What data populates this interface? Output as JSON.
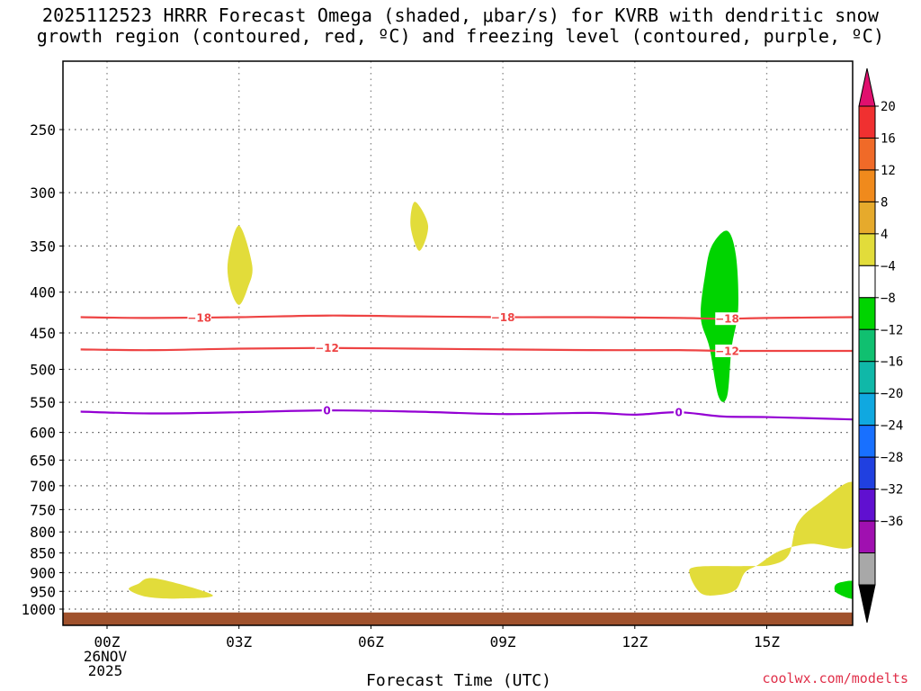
{
  "title": {
    "line1": "2025112523 HRRR Forecast Omega (shaded, μbar/s) for KVRB with dendritic snow",
    "line2": "growth region (contoured, red, ºC) and freezing level (contoured, purple, ºC)"
  },
  "credit": "coolwx.com/modelts",
  "chart_data": {
    "type": "contour",
    "xlabel": "Forecast Time (UTC)",
    "x_ticks": [
      {
        "hour": 0,
        "label": "00Z",
        "sub1": "26NOV",
        "sub2": "2025"
      },
      {
        "hour": 3,
        "label": "03Z"
      },
      {
        "hour": 6,
        "label": "06Z"
      },
      {
        "hour": 9,
        "label": "09Z"
      },
      {
        "hour": 12,
        "label": "12Z"
      },
      {
        "hour": 15,
        "label": "15Z"
      }
    ],
    "xlim": [
      -0.6,
      17
    ],
    "ylim_hpa": [
      195,
      1030
    ],
    "y_ticks": [
      250,
      300,
      350,
      400,
      450,
      500,
      550,
      600,
      650,
      700,
      750,
      800,
      850,
      900,
      950,
      1000
    ],
    "y_tick_labels": [
      "250",
      "300",
      "350",
      "400",
      "450",
      "500",
      "550",
      "600",
      "650",
      "700",
      "750",
      "800",
      "850",
      "900",
      "950",
      "1000"
    ],
    "surface_hpa": 1015,
    "surface_color": "#a0522d",
    "contours": [
      {
        "value": -18,
        "color": "#ee4444",
        "labels": [
          "-18",
          "-18",
          "-18"
        ],
        "label_hours": [
          2.1,
          9.0,
          14.1
        ],
        "points": [
          [
            -0.6,
            430
          ],
          [
            1,
            431
          ],
          [
            3,
            430
          ],
          [
            5,
            428
          ],
          [
            7,
            429
          ],
          [
            9,
            430
          ],
          [
            11,
            430
          ],
          [
            13,
            431
          ],
          [
            14,
            432
          ],
          [
            15,
            431
          ],
          [
            17,
            430
          ]
        ]
      },
      {
        "value": -12,
        "color": "#ee4444",
        "labels": [
          "-12",
          "-12"
        ],
        "label_hours": [
          5.0,
          14.1
        ],
        "points": [
          [
            -0.6,
            472
          ],
          [
            1,
            473
          ],
          [
            3,
            471
          ],
          [
            5,
            470
          ],
          [
            7,
            471
          ],
          [
            9,
            472
          ],
          [
            11,
            473
          ],
          [
            13,
            473
          ],
          [
            14,
            474
          ],
          [
            15,
            474
          ],
          [
            17,
            474
          ]
        ]
      },
      {
        "value": 0,
        "color": "#9400d3",
        "labels": [
          "0",
          "0"
        ],
        "label_hours": [
          5.0,
          13.0
        ],
        "points": [
          [
            -0.6,
            565
          ],
          [
            1,
            568
          ],
          [
            3,
            566
          ],
          [
            5,
            563
          ],
          [
            7,
            565
          ],
          [
            9,
            569
          ],
          [
            11,
            567
          ],
          [
            12,
            570
          ],
          [
            13,
            566
          ],
          [
            14,
            573
          ],
          [
            15,
            574
          ],
          [
            17,
            578
          ]
        ]
      }
    ],
    "shaded_regions": [
      {
        "color": "#e2dc3a",
        "range": "4 to 8",
        "points": [
          [
            3.0,
            330
          ],
          [
            3.3,
            370
          ],
          [
            3.2,
            395
          ],
          [
            3.0,
            415
          ],
          [
            2.8,
            395
          ],
          [
            2.75,
            365
          ]
        ]
      },
      {
        "color": "#e2dc3a",
        "range": "4 to 8",
        "points": [
          [
            7.0,
            308
          ],
          [
            7.3,
            330
          ],
          [
            7.1,
            355
          ],
          [
            6.9,
            330
          ]
        ]
      },
      {
        "color": "#e2dc3a",
        "range": "4 to 8",
        "points": [
          [
            0.5,
            945
          ],
          [
            0.7,
            930
          ],
          [
            1.1,
            915
          ],
          [
            2.4,
            960
          ],
          [
            1.6,
            970
          ],
          [
            0.9,
            965
          ]
        ]
      },
      {
        "color": "#e2dc3a",
        "range": "4 to 8",
        "points": [
          [
            13.25,
            905
          ],
          [
            13.4,
            885
          ],
          [
            14.5,
            883
          ],
          [
            15.1,
            880
          ],
          [
            15.5,
            855
          ],
          [
            15.7,
            780
          ],
          [
            16.2,
            735
          ],
          [
            17.0,
            695
          ],
          [
            17.0,
            830
          ],
          [
            16.0,
            828
          ],
          [
            15.3,
            845
          ],
          [
            14.8,
            880
          ],
          [
            14.5,
            900
          ],
          [
            14.3,
            945
          ],
          [
            13.9,
            960
          ],
          [
            13.5,
            955
          ]
        ]
      },
      {
        "color": "#00d400",
        "range": "-4 to -8",
        "points": [
          [
            14.1,
            335
          ],
          [
            14.3,
            360
          ],
          [
            14.35,
            420
          ],
          [
            14.2,
            470
          ],
          [
            14.1,
            540
          ],
          [
            13.9,
            540
          ],
          [
            13.7,
            470
          ],
          [
            13.5,
            430
          ],
          [
            13.6,
            380
          ],
          [
            13.75,
            350
          ]
        ]
      },
      {
        "color": "#00d400",
        "range": "-4 to -8",
        "points": [
          [
            17.0,
            925
          ],
          [
            17.0,
            970
          ],
          [
            16.6,
            955
          ],
          [
            16.55,
            935
          ],
          [
            16.7,
            925
          ]
        ]
      }
    ],
    "colorbar": {
      "labels": [
        "20",
        "16",
        "12",
        "8",
        "4",
        "-4",
        "-8",
        "-12",
        "-16",
        "-20",
        "-24",
        "-28",
        "-32",
        "-36"
      ],
      "colors": [
        "#f03030",
        "#f06a28",
        "#f08a1c",
        "#e6aa2c",
        "#e2dc3a",
        "#ffffff",
        "#00d400",
        "#10c070",
        "#10b8a8",
        "#10a8e0",
        "#1870ff",
        "#2040e0",
        "#6010d0",
        "#a010b0",
        "#a8a8a8"
      ],
      "top_color": "#e0106e",
      "bottom_color": "#000000"
    }
  }
}
